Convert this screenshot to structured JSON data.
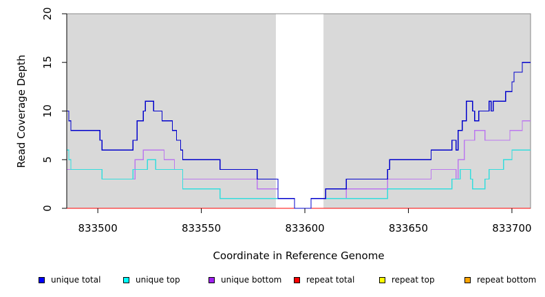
{
  "chart_data": {
    "type": "line",
    "title": "",
    "xlabel": "Coordinate in Reference Genome",
    "ylabel": "Read Coverage Depth",
    "xlim": [
      833485,
      833709
    ],
    "ylim": [
      0,
      20
    ],
    "x_ticks": [
      833500,
      833550,
      833600,
      833650,
      833700
    ],
    "x_tick_labels": [
      "833500",
      "833550",
      "833600",
      "833650",
      "833700"
    ],
    "y_ticks": [
      0,
      5,
      10,
      15,
      20
    ],
    "y_tick_labels": [
      "0",
      "5",
      "10",
      "15",
      "20"
    ],
    "shaded_regions": [
      {
        "x0": 833485,
        "x1": 833586,
        "color": "#d9d9d9"
      },
      {
        "x0": 833609,
        "x1": 833709,
        "color": "#d9d9d9"
      }
    ],
    "grid": false,
    "legend_position": "bottom",
    "series": [
      {
        "name": "unique total",
        "color": "#0000cc",
        "step": true,
        "points": [
          [
            833485,
            10
          ],
          [
            833486,
            9
          ],
          [
            833487,
            8
          ],
          [
            833501,
            7
          ],
          [
            833502,
            6
          ],
          [
            833517,
            7
          ],
          [
            833519,
            9
          ],
          [
            833522,
            10
          ],
          [
            833523,
            11
          ],
          [
            833527,
            10
          ],
          [
            833531,
            9
          ],
          [
            833536,
            8
          ],
          [
            833538,
            7
          ],
          [
            833540,
            6
          ],
          [
            833541,
            5
          ],
          [
            833559,
            4
          ],
          [
            833577,
            3
          ],
          [
            833587,
            1
          ],
          [
            833595,
            0
          ],
          [
            833603,
            1
          ],
          [
            833610,
            2
          ],
          [
            833620,
            3
          ],
          [
            833640,
            4
          ],
          [
            833641,
            5
          ],
          [
            833661,
            6
          ],
          [
            833671,
            7
          ],
          [
            833673,
            6
          ],
          [
            833674,
            8
          ],
          [
            833676,
            9
          ],
          [
            833678,
            11
          ],
          [
            833681,
            10
          ],
          [
            833682,
            9
          ],
          [
            833684,
            10
          ],
          [
            833689,
            11
          ],
          [
            833690,
            10
          ],
          [
            833691,
            11
          ],
          [
            833697,
            12
          ],
          [
            833700,
            13
          ],
          [
            833701,
            14
          ],
          [
            833705,
            15
          ],
          [
            833709,
            15
          ]
        ]
      },
      {
        "name": "unique top",
        "color": "#33dddd",
        "step": true,
        "points": [
          [
            833485,
            6
          ],
          [
            833486,
            5
          ],
          [
            833487,
            4
          ],
          [
            833502,
            3
          ],
          [
            833517,
            4
          ],
          [
            833524,
            5
          ],
          [
            833528,
            4
          ],
          [
            833541,
            2
          ],
          [
            833559,
            1
          ],
          [
            833587,
            1
          ],
          [
            833595,
            0
          ],
          [
            833603,
            1
          ],
          [
            833620,
            1
          ],
          [
            833640,
            2
          ],
          [
            833671,
            3
          ],
          [
            833675,
            4
          ],
          [
            833680,
            3
          ],
          [
            833681,
            2
          ],
          [
            833687,
            3
          ],
          [
            833689,
            4
          ],
          [
            833696,
            5
          ],
          [
            833700,
            6
          ],
          [
            833709,
            6
          ]
        ]
      },
      {
        "name": "unique bottom",
        "color": "#bb77ee",
        "step": true,
        "points": [
          [
            833485,
            4
          ],
          [
            833502,
            3
          ],
          [
            833518,
            5
          ],
          [
            833522,
            6
          ],
          [
            833532,
            5
          ],
          [
            833537,
            4
          ],
          [
            833541,
            3
          ],
          [
            833577,
            2
          ],
          [
            833587,
            1
          ],
          [
            833595,
            0
          ],
          [
            833603,
            1
          ],
          [
            833620,
            2
          ],
          [
            833640,
            3
          ],
          [
            833661,
            4
          ],
          [
            833673,
            3
          ],
          [
            833674,
            5
          ],
          [
            833677,
            7
          ],
          [
            833682,
            8
          ],
          [
            833687,
            7
          ],
          [
            833699,
            8
          ],
          [
            833705,
            9
          ],
          [
            833709,
            9
          ]
        ]
      },
      {
        "name": "repeat total",
        "color": "#ff0000",
        "step": true,
        "points": [
          [
            833485,
            0
          ],
          [
            833709,
            0
          ]
        ]
      },
      {
        "name": "repeat top",
        "color": "#ffff00",
        "step": true,
        "points": [
          [
            833485,
            0
          ],
          [
            833709,
            0
          ]
        ]
      },
      {
        "name": "repeat bottom",
        "color": "#ff9900",
        "step": true,
        "points": [
          [
            833485,
            0
          ],
          [
            833709,
            0
          ]
        ]
      }
    ]
  },
  "legend": {
    "items": [
      {
        "label": "unique total",
        "color": "#0000ff"
      },
      {
        "label": "unique top",
        "color": "#00ffff"
      },
      {
        "label": "unique bottom",
        "color": "#a020f0"
      },
      {
        "label": "repeat total",
        "color": "#ff0000"
      },
      {
        "label": "repeat top",
        "color": "#ffff00"
      },
      {
        "label": "repeat bottom",
        "color": "#ffa500"
      }
    ]
  }
}
